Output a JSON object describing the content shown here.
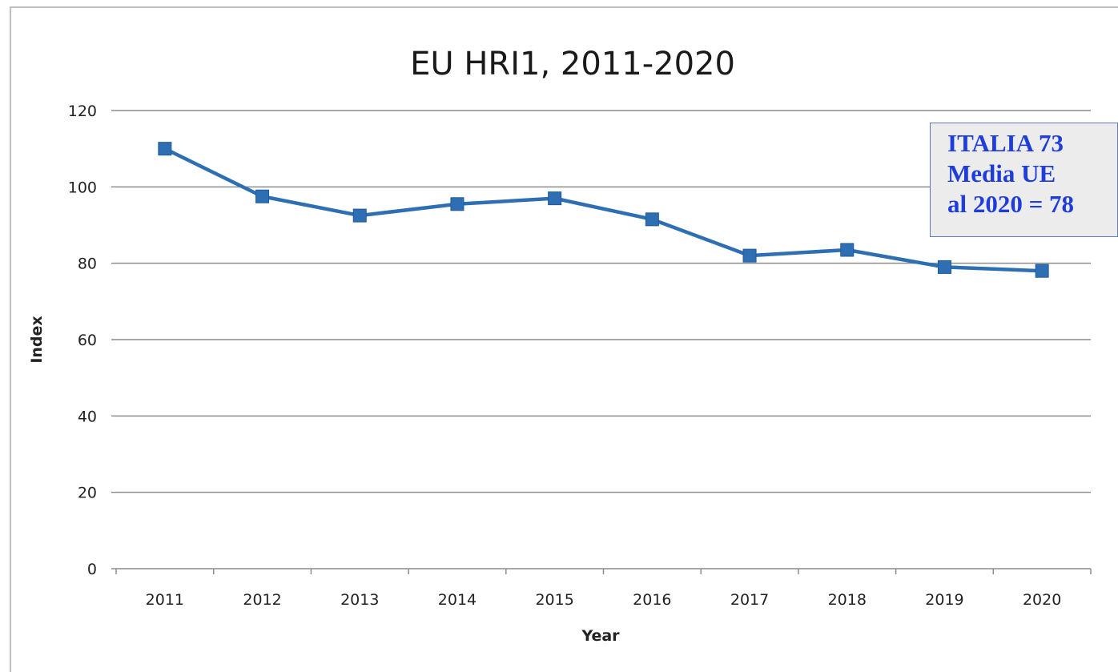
{
  "chart_data": {
    "type": "line",
    "title": "EU HRI1, 2011-2020",
    "xlabel": "Year",
    "ylabel": "Index",
    "categories": [
      "2011",
      "2012",
      "2013",
      "2014",
      "2015",
      "2016",
      "2017",
      "2018",
      "2019",
      "2020"
    ],
    "series": [
      {
        "values": [
          110,
          97.5,
          92.5,
          95.5,
          97,
          91.5,
          82,
          83.5,
          79,
          78
        ],
        "color": "#2e6fb3",
        "marker": "square"
      }
    ],
    "ylim": [
      0,
      120
    ],
    "yticks": [
      0,
      20,
      40,
      60,
      80,
      100,
      120
    ],
    "grid": true,
    "annotation": {
      "lines": [
        "ITALIA 73",
        "Media UE",
        "al 2020 = 78"
      ],
      "text_color": "#1f3ddb",
      "background": "#ececec"
    }
  }
}
